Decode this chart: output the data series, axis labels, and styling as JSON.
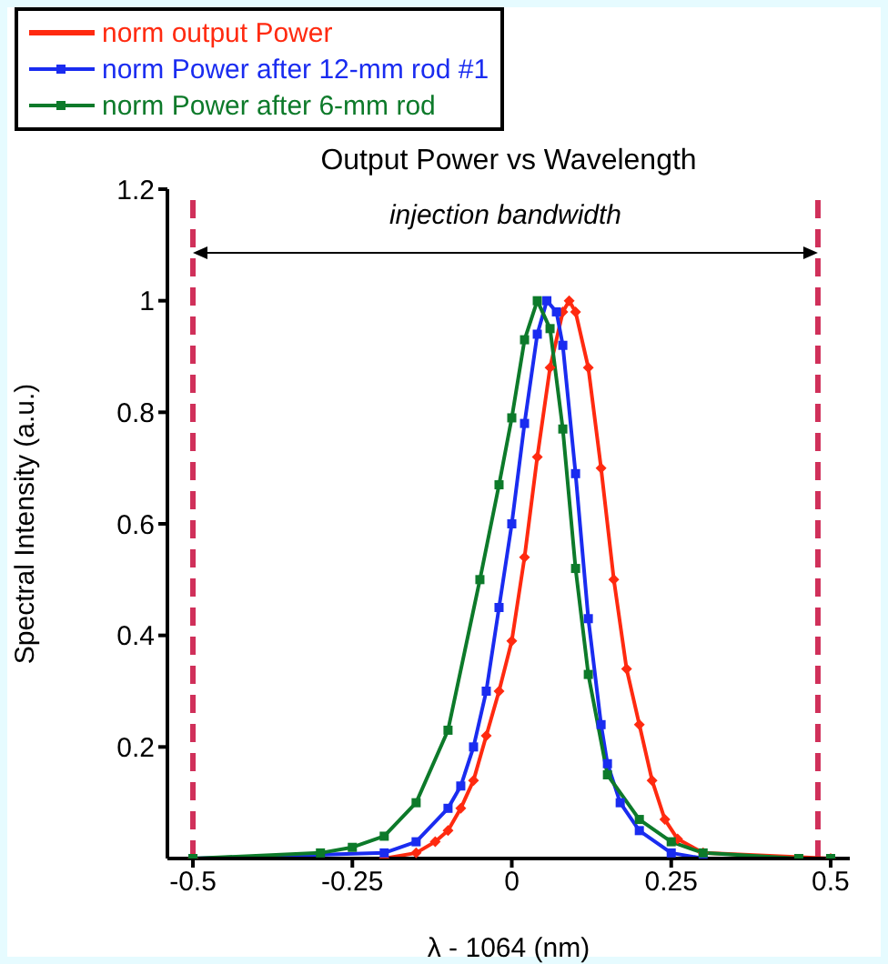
{
  "chart_data": {
    "type": "line",
    "title": "Output Power vs Wavelength",
    "xlabel": "λ - 1064 (nm)",
    "ylabel": "Spectral Intensity (a.u.)",
    "xlim": [
      -0.54,
      0.53
    ],
    "xticks": [
      -0.5,
      -0.25,
      0,
      0.25,
      0.5
    ],
    "ylim": [
      0,
      1.2
    ],
    "yticks": [
      0.2,
      0.4,
      0.6,
      0.8,
      1,
      1.2
    ],
    "grid": false,
    "legend": "top left",
    "series": [
      {
        "name": "norm output Power",
        "color": "#ff2a10",
        "marker": "diamond",
        "x": [
          -0.5,
          -0.2,
          -0.15,
          -0.12,
          -0.1,
          -0.08,
          -0.06,
          -0.04,
          -0.02,
          0,
          0.02,
          0.04,
          0.06,
          0.08,
          0.09,
          0.1,
          0.12,
          0.14,
          0.16,
          0.18,
          0.2,
          0.22,
          0.24,
          0.26,
          0.3,
          0.5
        ],
        "values": [
          0,
          0,
          0.01,
          0.03,
          0.05,
          0.09,
          0.14,
          0.22,
          0.3,
          0.39,
          0.54,
          0.72,
          0.88,
          0.98,
          1,
          0.98,
          0.88,
          0.7,
          0.5,
          0.34,
          0.24,
          0.14,
          0.07,
          0.035,
          0.01,
          0
        ]
      },
      {
        "name": "norm Power after 12-mm rod #1",
        "color": "#1a2cf0",
        "marker": "square",
        "x": [
          -0.5,
          -0.2,
          -0.15,
          -0.1,
          -0.08,
          -0.06,
          -0.04,
          -0.02,
          0,
          0.02,
          0.04,
          0.055,
          0.07,
          0.08,
          0.1,
          0.12,
          0.14,
          0.15,
          0.17,
          0.2,
          0.25,
          0.3,
          0.5
        ],
        "values": [
          0,
          0.01,
          0.03,
          0.09,
          0.13,
          0.2,
          0.3,
          0.45,
          0.6,
          0.78,
          0.94,
          1,
          0.98,
          0.92,
          0.69,
          0.43,
          0.24,
          0.17,
          0.1,
          0.05,
          0.01,
          0,
          0
        ]
      },
      {
        "name": "norm Power after 6-mm rod",
        "color": "#0d7a2a",
        "marker": "square",
        "x": [
          -0.5,
          -0.3,
          -0.25,
          -0.2,
          -0.15,
          -0.1,
          -0.05,
          -0.02,
          0,
          0.02,
          0.04,
          0.06,
          0.08,
          0.1,
          0.12,
          0.15,
          0.2,
          0.25,
          0.3,
          0.45,
          0.5
        ],
        "values": [
          0,
          0.01,
          0.02,
          0.04,
          0.1,
          0.23,
          0.5,
          0.67,
          0.79,
          0.93,
          1,
          0.95,
          0.77,
          0.52,
          0.33,
          0.15,
          0.07,
          0.03,
          0.01,
          0,
          0
        ]
      }
    ],
    "ref_lines": [
      {
        "axis": "x",
        "value": -0.5,
        "color": "#d0305a",
        "line_style": "dashed"
      },
      {
        "axis": "x",
        "value": 0.48,
        "color": "#d0305a",
        "line_style": "dashed"
      }
    ],
    "annotations": [
      "injection bandwidth"
    ]
  }
}
